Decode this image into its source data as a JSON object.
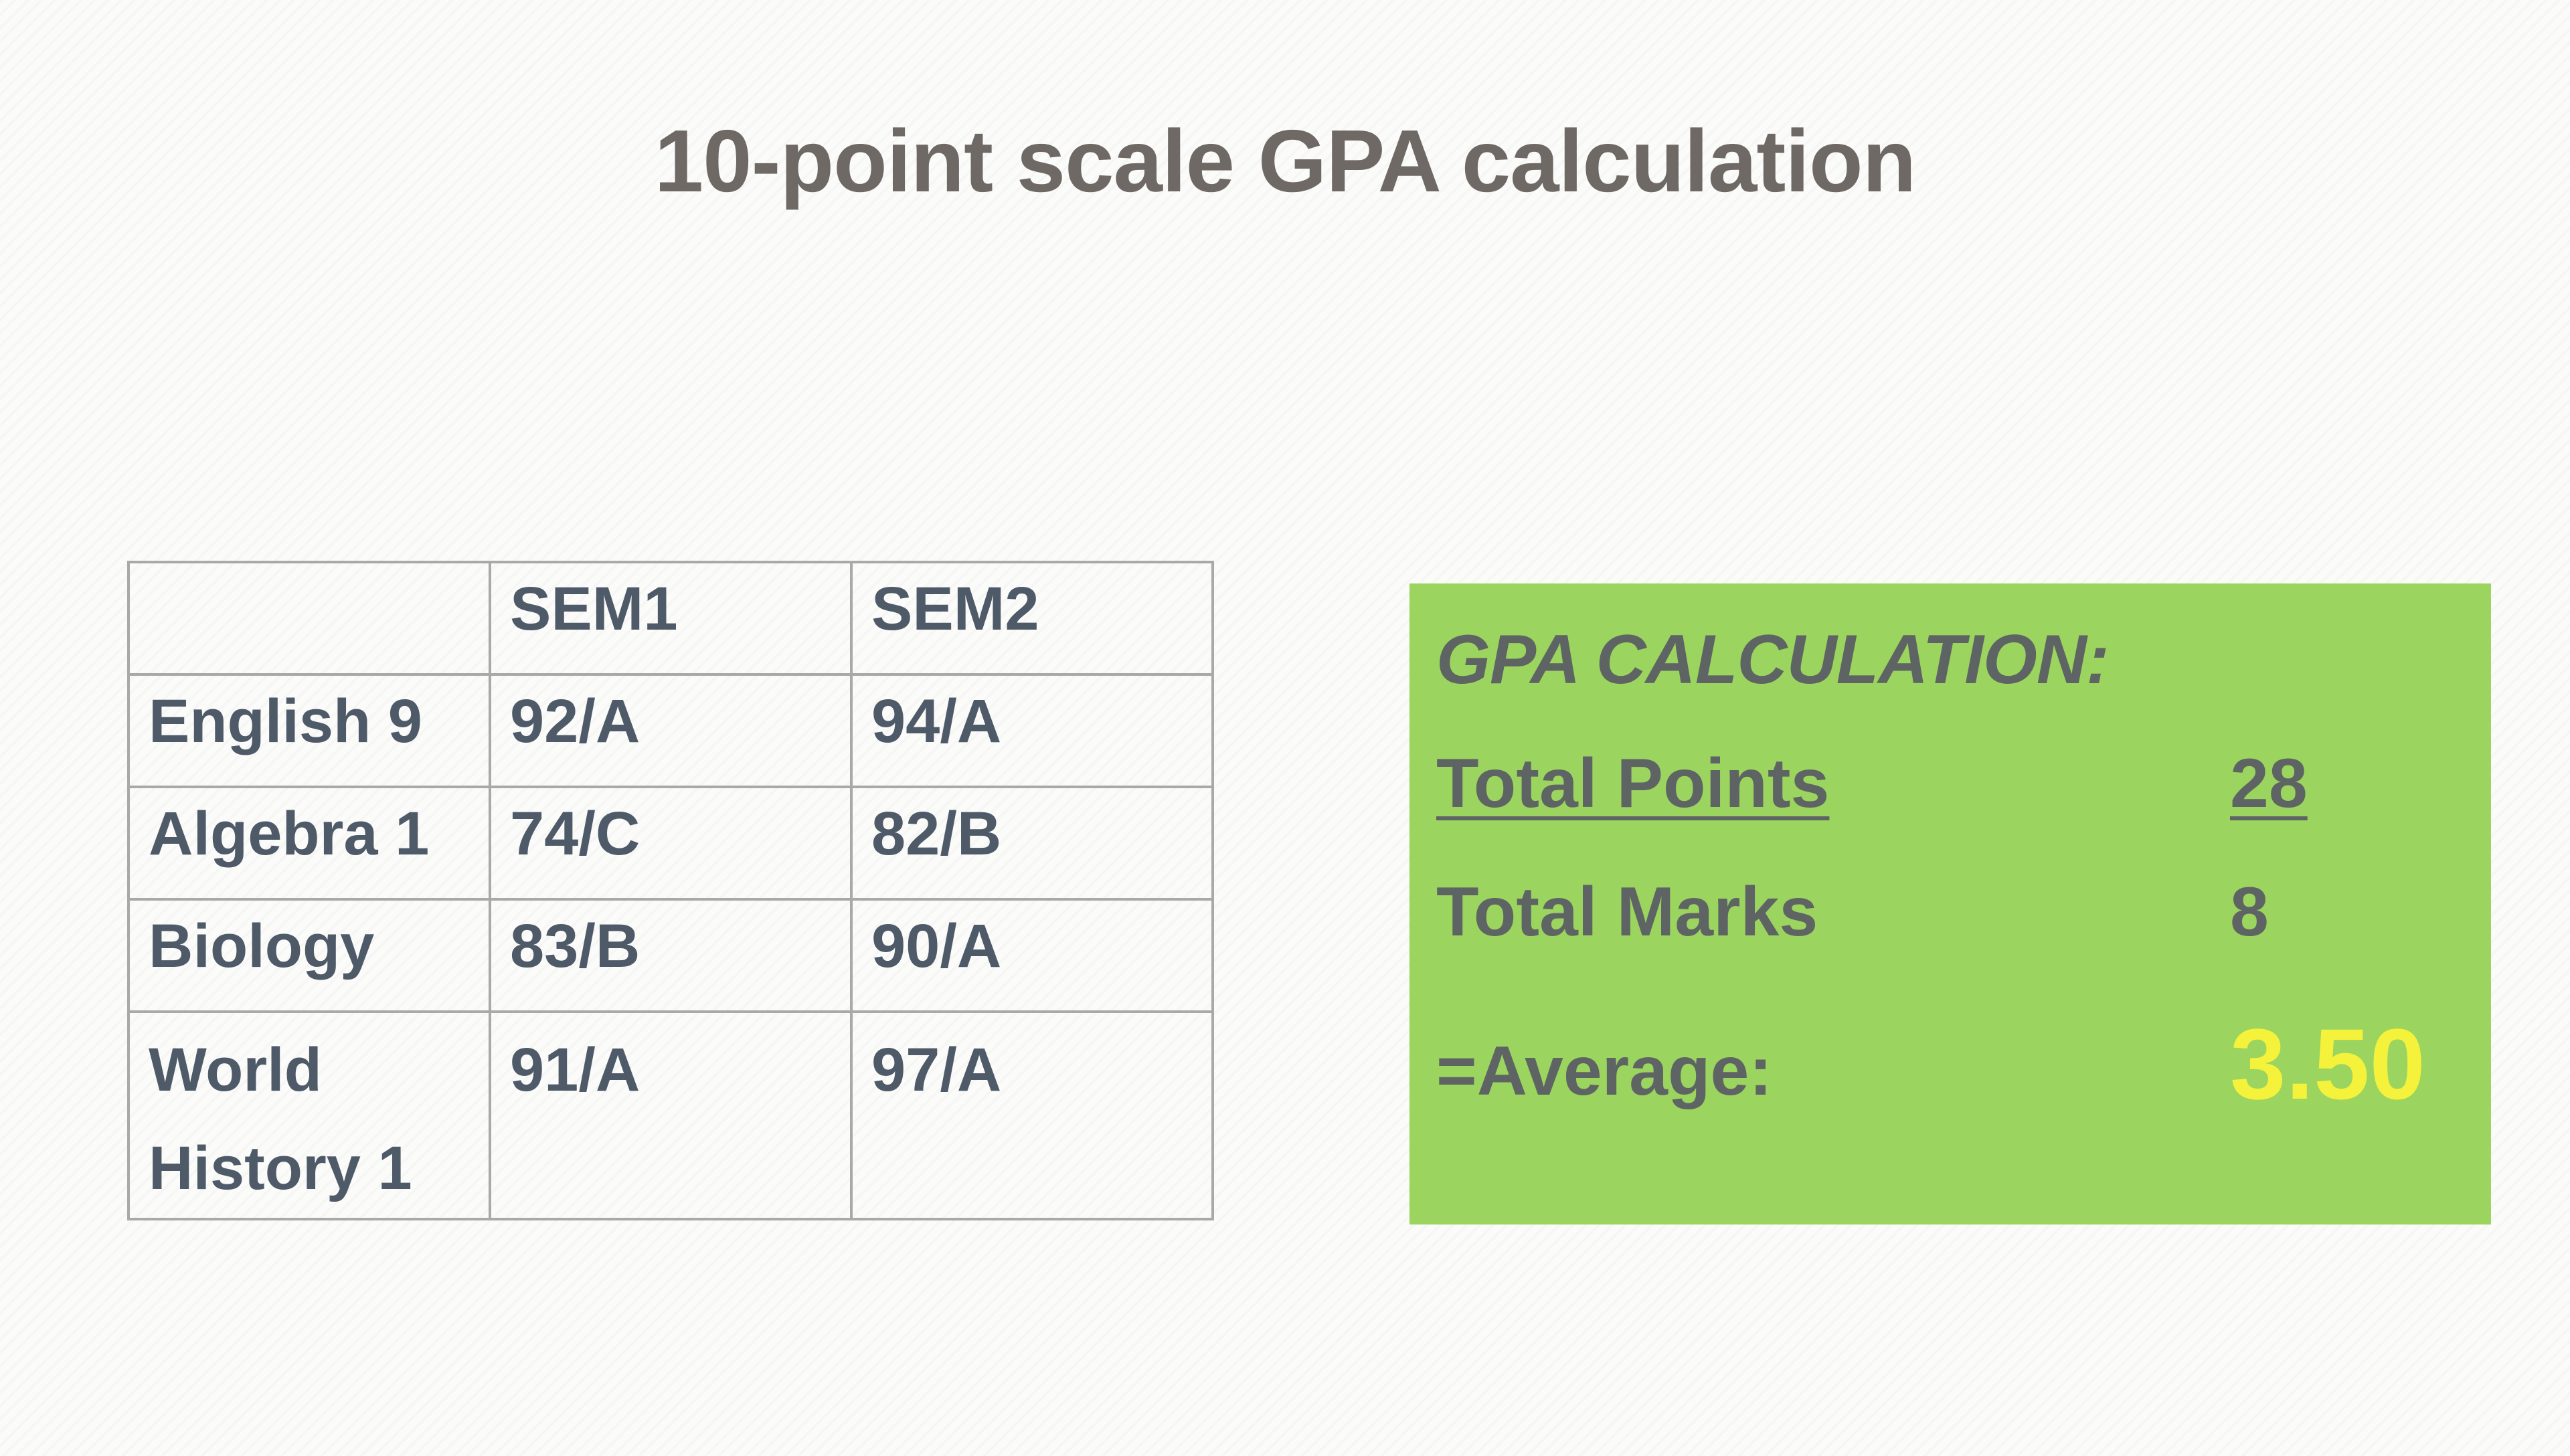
{
  "title": "10-point scale GPA calculation",
  "table": {
    "headers": [
      "",
      "SEM1",
      "SEM2"
    ],
    "rows": [
      {
        "subject": "English 9",
        "sem1": "92/A",
        "sem2": "94/A"
      },
      {
        "subject": "Algebra 1",
        "sem1": "74/C",
        "sem2": "82/B"
      },
      {
        "subject": "Biology",
        "sem1": "83/B",
        "sem2": "90/A"
      },
      {
        "subject": "World History 1",
        "sem1": "91/A",
        "sem2": "97/A"
      }
    ]
  },
  "gpa_box": {
    "heading": "GPA CALCULATION:",
    "total_points_label": "Total Points",
    "total_points_value": "28",
    "total_marks_label": "Total Marks",
    "total_marks_value": "8",
    "average_label": "=Average:",
    "average_value": "3.50",
    "background_color": "#9bd45e",
    "highlight_color": "#f4f23a"
  }
}
